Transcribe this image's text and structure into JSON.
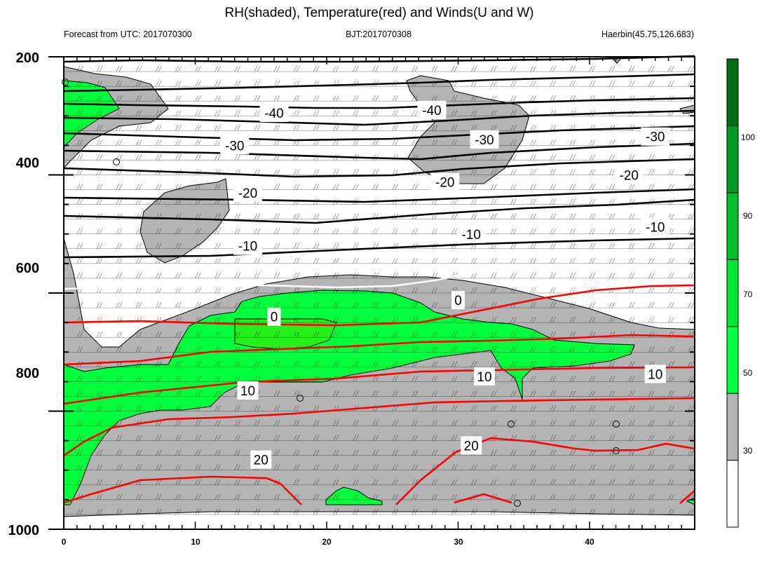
{
  "chart_data": {
    "type": "contour",
    "title": "RH(shaded), Temperature(red) and Winds(U and W)",
    "subtitle_left": "Forecast from UTC: 2017070300",
    "subtitle_center": "BJT:2017070308",
    "subtitle_right": "Haerbin(45.75,126.683)",
    "xlim": [
      0,
      48
    ],
    "ylim": [
      1000,
      200
    ],
    "x_ticks": [
      "0",
      "10",
      "20",
      "30",
      "40"
    ],
    "y_ticks": [
      "200",
      "400",
      "600",
      "800",
      "1000"
    ],
    "colorbar": {
      "levels": [
        "30",
        "50",
        "70",
        "90",
        "100"
      ],
      "colors": [
        "#ffffff",
        "#b4b4b4",
        "#00ff3c",
        "#00e832",
        "#00be2a",
        "#009a20",
        "#006e16"
      ]
    },
    "temperature_labels": [
      "-40",
      "-30",
      "-20",
      "-10",
      "0",
      "10",
      "20"
    ],
    "contour_label_positions": [
      {
        "text": "-40",
        "x": 16,
        "p": 295
      },
      {
        "text": "-40",
        "x": 28,
        "p": 290
      },
      {
        "text": "-30",
        "x": 13,
        "p": 350
      },
      {
        "text": "-30",
        "x": 32,
        "p": 340
      },
      {
        "text": "-30",
        "x": 45,
        "p": 335
      },
      {
        "text": "-20",
        "x": 14,
        "p": 430
      },
      {
        "text": "-20",
        "x": 29,
        "p": 412
      },
      {
        "text": "-20",
        "x": 43,
        "p": 400
      },
      {
        "text": "-10",
        "x": 14,
        "p": 520
      },
      {
        "text": "-10",
        "x": 31,
        "p": 500
      },
      {
        "text": "-10",
        "x": 45,
        "p": 488
      },
      {
        "text": "0",
        "x": 16,
        "p": 640
      },
      {
        "text": "0",
        "x": 30,
        "p": 612
      },
      {
        "text": "10",
        "x": 14,
        "p": 765
      },
      {
        "text": "10",
        "x": 32,
        "p": 741
      },
      {
        "text": "10",
        "x": 45,
        "p": 737
      },
      {
        "text": "20",
        "x": 15,
        "p": 882
      },
      {
        "text": "20",
        "x": 31,
        "p": 858
      }
    ]
  }
}
